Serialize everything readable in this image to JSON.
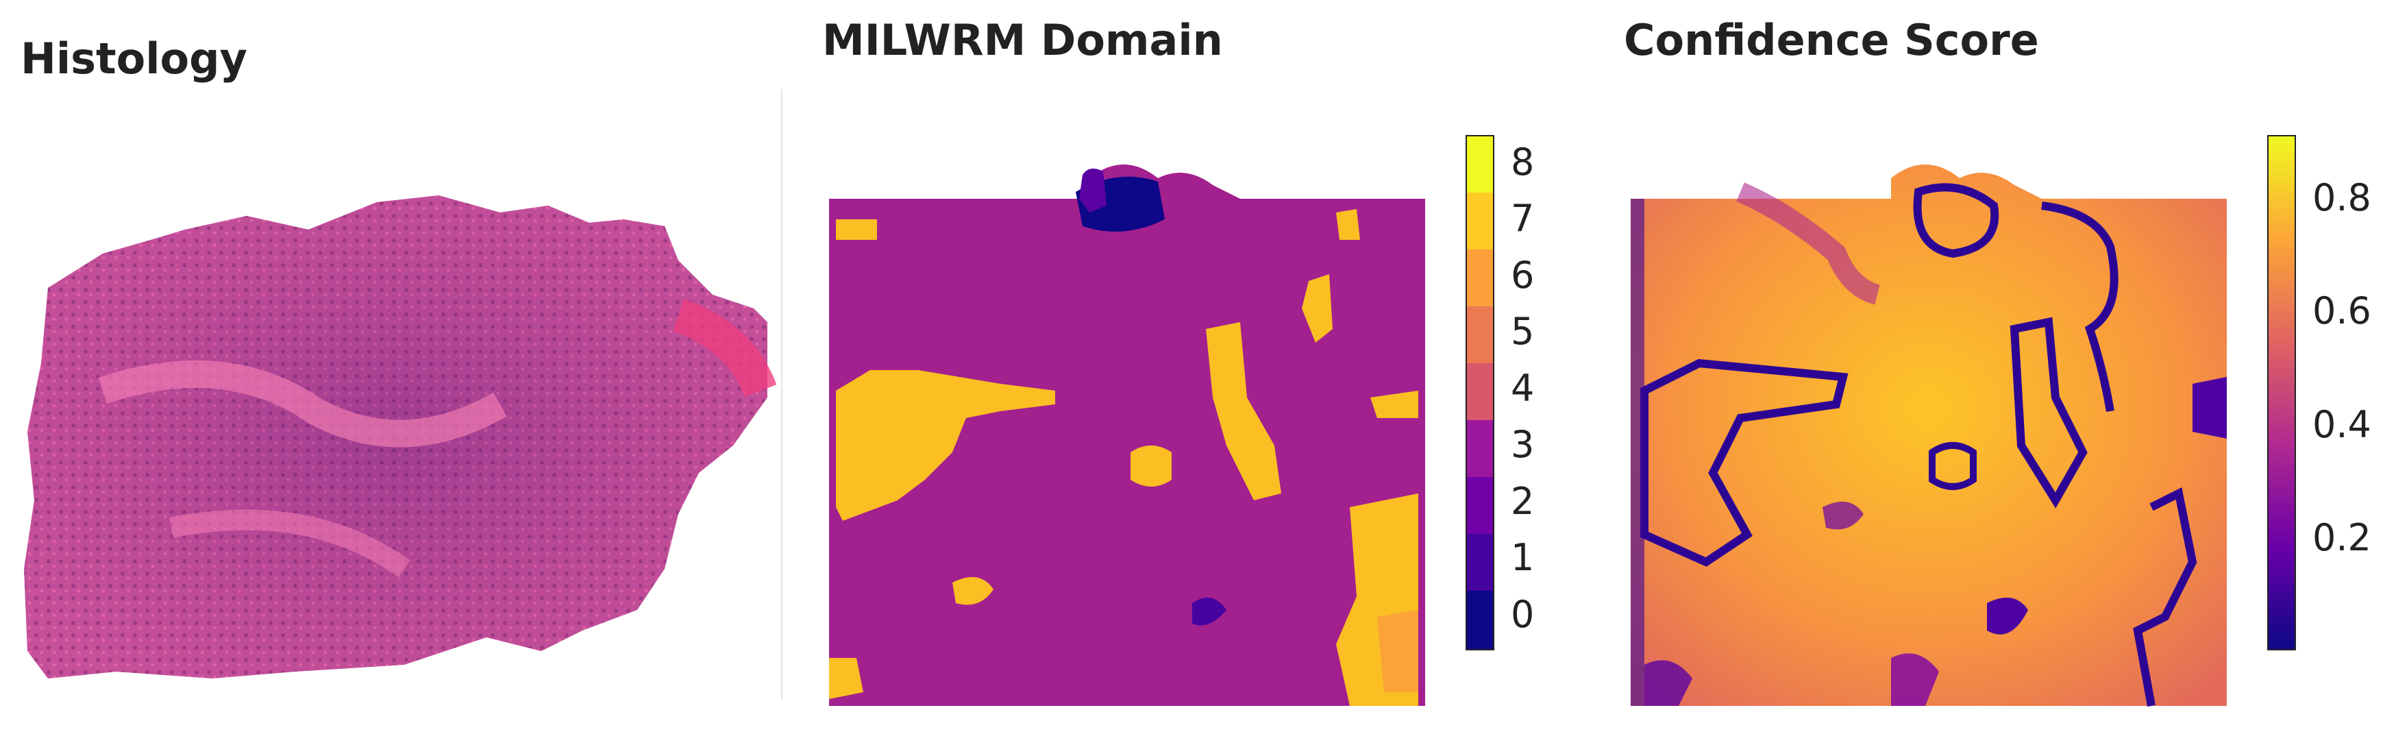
{
  "panels": {
    "histology": {
      "title": "Histology"
    },
    "domain": {
      "title": "MILWRM Domain",
      "colorbar": {
        "ticks": [
          "0",
          "1",
          "2",
          "3",
          "4",
          "5",
          "6",
          "7",
          "8"
        ],
        "colors": [
          "#0d0887",
          "#46039f",
          "#7201a8",
          "#9c179e",
          "#bd3786",
          "#d8576b",
          "#ed7953",
          "#fb9f3a",
          "#fdca26",
          "#f0f921"
        ],
        "dominant_color": "#a3208f",
        "secondary_color": "#fbbf23",
        "minor_colors": [
          "#0d0887",
          "#5b02a3",
          "#fba238"
        ]
      }
    },
    "confidence": {
      "title": "Confidence Score",
      "colorbar": {
        "ticks": [
          "0.2",
          "0.4",
          "0.6",
          "0.8"
        ],
        "colors": [
          "#0d0887",
          "#6a00a8",
          "#b12a90",
          "#e16462",
          "#fca636",
          "#f0f921"
        ]
      }
    }
  }
}
